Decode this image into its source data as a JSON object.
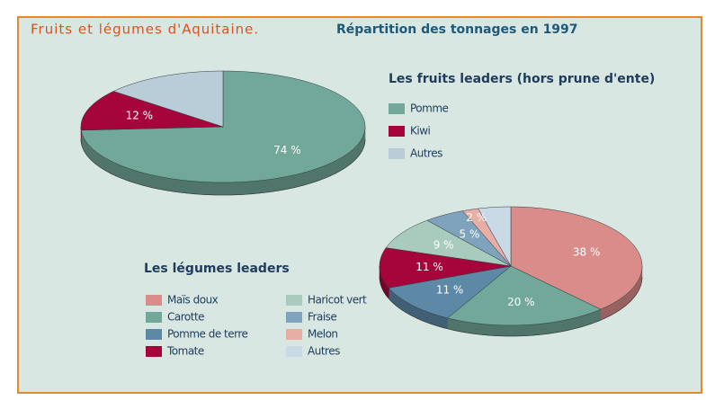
{
  "header": {
    "title": "Fruits et légumes d'Aquitaine.",
    "subtitle": "Répartition des tonnages en 1997"
  },
  "chart_data": [
    {
      "type": "pie",
      "title": "Les fruits leaders (hors prune d'ente)",
      "categories": [
        "Pomme",
        "Kiwi",
        "Autres"
      ],
      "values": [
        74,
        12,
        14
      ],
      "value_labels": [
        "74 %",
        "12 %",
        null
      ],
      "colors": [
        "#72a89a",
        "#a6053c",
        "#b8cdd8"
      ]
    },
    {
      "type": "pie",
      "title": "Les légumes leaders",
      "categories": [
        "Maïs doux",
        "Carotte",
        "Pomme de terre",
        "Tomate",
        "Haricot vert",
        "Fraise",
        "Melon",
        "Autres"
      ],
      "values": [
        38,
        20,
        11,
        11,
        9,
        5,
        2,
        4
      ],
      "value_labels": [
        "38 %",
        "20 %",
        "11 %",
        "11 %",
        "9 %",
        "5 %",
        "2 %",
        null
      ],
      "colors": [
        "#d98c89",
        "#72a89a",
        "#5d89a7",
        "#a6053c",
        "#a9cbbe",
        "#7fa3bc",
        "#e8aea6",
        "#c9d9e6"
      ]
    }
  ]
}
